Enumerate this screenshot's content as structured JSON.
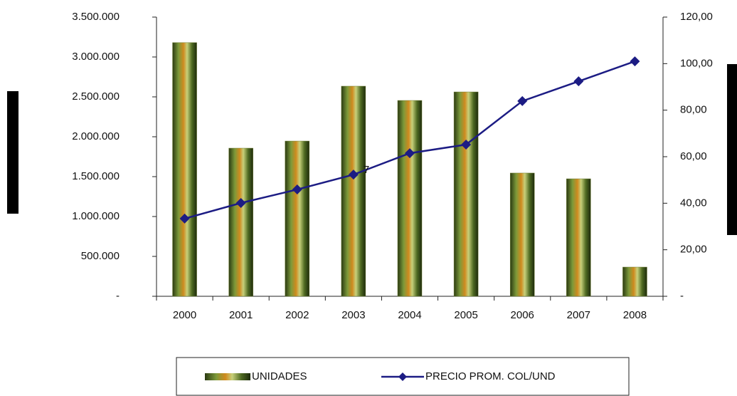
{
  "chart_data": {
    "type": "bar-line",
    "categories": [
      "2000",
      "2001",
      "2002",
      "2003",
      "2004",
      "2005",
      "2006",
      "2007",
      "2008"
    ],
    "series": [
      {
        "name": "UNIDADES",
        "type": "bar",
        "color": "#6b7a2e",
        "values": [
          3180000,
          1857000,
          1946000,
          2634000,
          2455000,
          2562000,
          1545000,
          1473000,
          366000
        ]
      },
      {
        "name": "PRECIO PROM. COL/UND",
        "type": "line",
        "axis": "y2",
        "color": "#1c1c84",
        "values": [
          33.4,
          40.1,
          45.9,
          52.3,
          61.5,
          65.2,
          83.9,
          92.4,
          101
        ]
      }
    ],
    "ylim": [
      0,
      3500000
    ],
    "yticks": [
      {
        "value": 0,
        "label": "-"
      },
      {
        "value": 500000,
        "label": "500.000"
      },
      {
        "value": 1000000,
        "label": "1.000.000"
      },
      {
        "value": 1500000,
        "label": "1.500.000"
      },
      {
        "value": 2000000,
        "label": "2.000.000"
      },
      {
        "value": 2500000,
        "label": "2.500.000"
      },
      {
        "value": 3000000,
        "label": "3.000.000"
      },
      {
        "value": 3500000,
        "label": "3.500.000"
      }
    ],
    "y2lim": [
      0,
      120
    ],
    "y2ticks": [
      {
        "value": 0,
        "label": "-"
      },
      {
        "value": 20,
        "label": "20,00"
      },
      {
        "value": 40,
        "label": "40,00"
      },
      {
        "value": 60,
        "label": "60,00"
      },
      {
        "value": 80,
        "label": "80,00"
      },
      {
        "value": 100,
        "label": "100,00"
      },
      {
        "value": 120,
        "label": "120,00"
      }
    ],
    "annotations": [
      "7"
    ],
    "grid": false
  }
}
